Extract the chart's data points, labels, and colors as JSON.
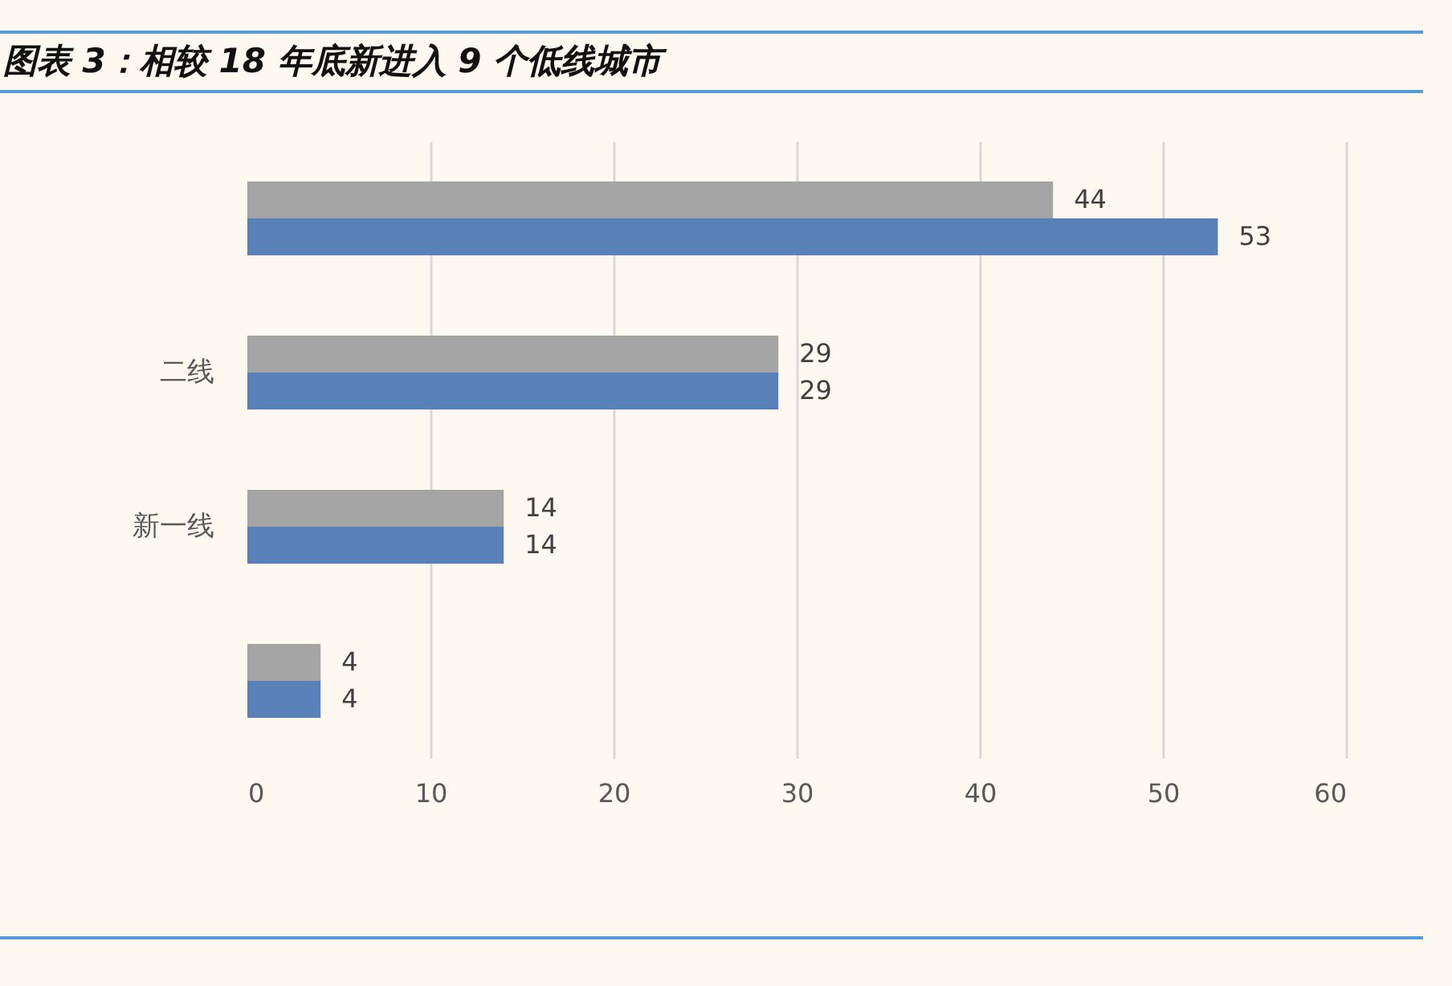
{
  "chart_data": {
    "type": "bar",
    "orientation": "horizontal",
    "title": "图表 3：相较 18 年底新进入 9 个低线城市",
    "categories": [
      null,
      "二线",
      "新一线",
      null
    ],
    "series": [
      {
        "color": "#a5a5a5",
        "values": [
          44,
          29,
          14,
          4
        ]
      },
      {
        "color": "#5a80b8",
        "values": [
          53,
          29,
          14,
          4
        ]
      }
    ],
    "xlim": [
      0,
      60
    ],
    "xticks": [
      0,
      10,
      20,
      30,
      40,
      50,
      60
    ],
    "grid": "x",
    "data_labels": true
  }
}
